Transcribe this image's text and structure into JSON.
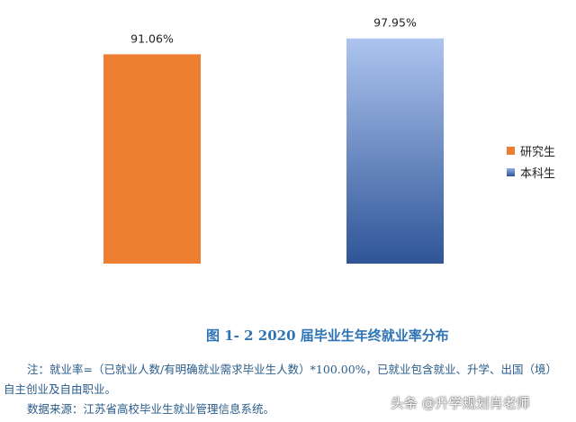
{
  "chart_data": {
    "type": "bar",
    "categories": [
      "研究生",
      "本科生"
    ],
    "values": [
      91.06,
      97.95
    ],
    "data_labels": [
      "91.06%",
      "97.95%"
    ],
    "ylim": [
      0,
      100
    ],
    "grid": false,
    "legend_position": "right",
    "colors": [
      "#ed7d31",
      "#2f5597"
    ]
  },
  "legend": {
    "items": [
      {
        "label": "研究生",
        "color": "#ed7d31"
      },
      {
        "label": "本科生",
        "color": "#4472c4"
      }
    ]
  },
  "caption": "图 1- 2 2020 届毕业生年终就业率分布",
  "notes": {
    "line1": "注：就业率=（已就业人数/有明确就业需求毕业生人数）*100.00%，已就业包含就业、升学、出国（境）",
    "line2": "自主创业及自由职业。",
    "line3": "数据来源：江苏省高校毕业生就业管理信息系统。"
  },
  "watermark": "头条 @升学规划肖老师"
}
